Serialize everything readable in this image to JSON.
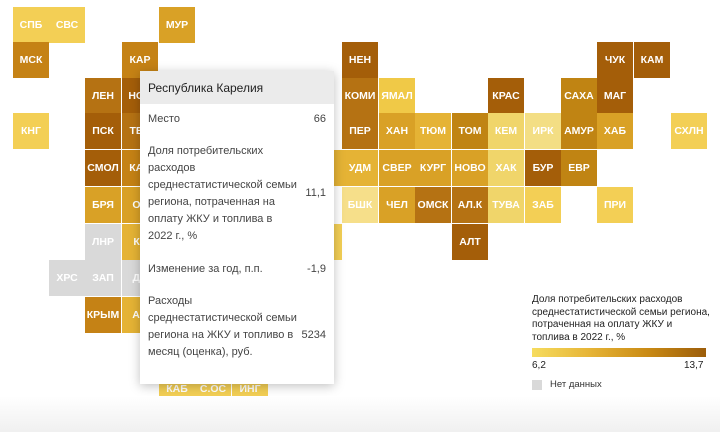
{
  "map": {
    "tiles": [
      {
        "code": "СПБ",
        "color": "#f3cf55"
      },
      {
        "code": "СВС",
        "color": "#f3cf55"
      },
      {
        "code": "МУР",
        "color": "#d9a126"
      },
      {
        "code": "МСК",
        "color": "#c58215"
      },
      {
        "code": "КАР",
        "color": "#c58215"
      },
      {
        "code": "НЕН",
        "color": "#a45e09"
      },
      {
        "code": "ЧУК",
        "color": "#a45e09"
      },
      {
        "code": "КАМ",
        "color": "#a45e09"
      },
      {
        "code": "ЛЕН",
        "color": "#b57213"
      },
      {
        "code": "НОВ",
        "color": "#a45e09"
      },
      {
        "code": "КОМИ",
        "color": "#b57213"
      },
      {
        "code": "ЯМАЛ",
        "color": "#f0c947"
      },
      {
        "code": "КРАС",
        "color": "#a45e09"
      },
      {
        "code": "САХА",
        "color": "#c08413"
      },
      {
        "code": "МАГ",
        "color": "#a45e09"
      },
      {
        "code": "КНГ",
        "color": "#f3cf55"
      },
      {
        "code": "ПСК",
        "color": "#a45e09"
      },
      {
        "code": "ТВЕ",
        "color": "#b57213"
      },
      {
        "code": "ПЕР",
        "color": "#b57213"
      },
      {
        "code": "ХАН",
        "color": "#d9a126"
      },
      {
        "code": "ТЮМ",
        "color": "#e5b335"
      },
      {
        "code": "ТОМ",
        "color": "#c08413"
      },
      {
        "code": "КЕМ",
        "color": "#f0d56a"
      },
      {
        "code": "ИРК",
        "color": "#f3de84"
      },
      {
        "code": "АМУР",
        "color": "#c08413"
      },
      {
        "code": "ХАБ",
        "color": "#d9a126"
      },
      {
        "code": "СХЛН",
        "color": "#f3cf55"
      },
      {
        "code": "СМОЛ",
        "color": "#a45e09"
      },
      {
        "code": "КАЛ",
        "color": "#c58215"
      },
      {
        "code": "УДМ",
        "color": "#e5b335"
      },
      {
        "code": "СВЕР",
        "color": "#d9a126"
      },
      {
        "code": "КУРГ",
        "color": "#d9a126"
      },
      {
        "code": "НОВО",
        "color": "#d9a126"
      },
      {
        "code": "ХАК",
        "color": "#f0d56a"
      },
      {
        "code": "БУР",
        "color": "#a45e09"
      },
      {
        "code": "ЕВР",
        "color": "#c08413"
      },
      {
        "code": "БРЯ",
        "color": "#d9a126"
      },
      {
        "code": "ОР",
        "color": "#d9a126"
      },
      {
        "code": "БШК",
        "color": "#f6df8a"
      },
      {
        "code": "ЧЕЛ",
        "color": "#d9a126"
      },
      {
        "code": "ОМСК",
        "color": "#b57213"
      },
      {
        "code": "АЛ.К",
        "color": "#b57213"
      },
      {
        "code": "ТУВА",
        "color": "#f0d56a"
      },
      {
        "code": "ЗАБ",
        "color": "#f3cf55"
      },
      {
        "code": "ПРИ",
        "color": "#f3cf55"
      },
      {
        "code": "ЛНР",
        "color": "#d9d9d9"
      },
      {
        "code": "КУ",
        "color": "#e5b335"
      },
      {
        "code": "АЛТ",
        "color": "#a45e09"
      },
      {
        "code": "ХРС",
        "color": "#d9d9d9"
      },
      {
        "code": "ЗАП",
        "color": "#d9d9d9"
      },
      {
        "code": "ДН",
        "color": "#d9d9d9"
      },
      {
        "code": "КРЫМ",
        "color": "#c58215"
      },
      {
        "code": "АД",
        "color": "#e5b335"
      },
      {
        "code": "КАБ",
        "color": "#f3cf55"
      },
      {
        "code": "С.ОС",
        "color": "#f3cf55"
      },
      {
        "code": "ИНГ",
        "color": "#f3cf55"
      }
    ]
  },
  "tooltip": {
    "title": "Республика Карелия",
    "rows": [
      {
        "label": "Место",
        "value": "66"
      },
      {
        "label": "Доля потребительских расходов среднестатистической семьи региона, потраченная на оплату ЖКУ и топлива в 2022 г., %",
        "value": "11,1"
      },
      {
        "label": "Изменение за год, п.п.",
        "value": "-1,9"
      },
      {
        "label": "Расходы среднестатистической семьи региона на ЖКУ и топливо в месяц (оценка), руб.",
        "value": "5234"
      }
    ]
  },
  "legend": {
    "title": "Доля потребительских расходов среднестатистической семьи региона, потраченная на оплату ЖКУ и топлива в 2022 г., %",
    "min": "6,2",
    "max": "13,7",
    "no_data": "Нет данных",
    "gradient": [
      "#f6dc5e",
      "#9c5d0a"
    ]
  }
}
